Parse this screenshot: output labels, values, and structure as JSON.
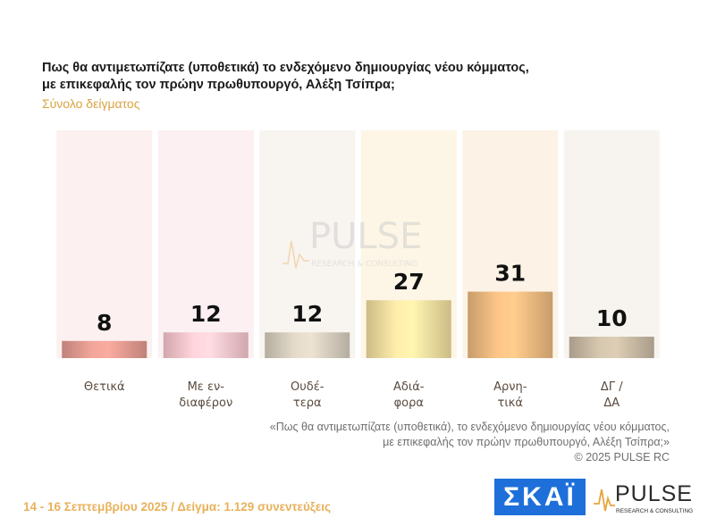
{
  "header": {
    "title": "Πως θα αντιμετωπίζατε (υποθετικά) το ενδεχόμενο δημιουργίας νέου κόμματος, με επικεφαλής τον πρώην πρωθυπουργό, Αλέξη Τσίπρα;",
    "subtitle": "Σύνολο δείγματος"
  },
  "chart_data": {
    "type": "bar",
    "categories": [
      [
        "Θετικά"
      ],
      [
        "Με εν-",
        "διαφέρον"
      ],
      [
        "Ουδέ-",
        "τερα"
      ],
      [
        "Αδιά-",
        "φορα"
      ],
      [
        "Αρνη-",
        "τικά"
      ],
      [
        "ΔΓ /",
        "ΔΑ"
      ]
    ],
    "values": [
      8,
      12,
      12,
      27,
      31,
      10
    ],
    "ylim": [
      0,
      100
    ],
    "bar_colors": [
      "#e0998f",
      "#f6c4cc",
      "#d4cbbc",
      "#f0dc9e",
      "#eab77e",
      "#c6b8a2"
    ],
    "background_colors": [
      "#fdf0f0",
      "#fcf0f3",
      "#f8f4f0",
      "#fdf6e6",
      "#fcf2e6",
      "#f7f4f0"
    ]
  },
  "watermark": {
    "brand": "PULSE",
    "tagline": "RESEARCH & CONSULTING"
  },
  "note": {
    "line1": "«Πως θα αντιμετωπίζατε (υποθετικά), το ενδεχόμενο δημιουργίας νέου κόμματος,",
    "line2": "με επικεφαλής τον πρώην πρωθυπουργό, Αλέξη Τσίπρα;»",
    "copyright": "©  2025  PULSE RC"
  },
  "footer": {
    "text": "14 - 16 Σεπτεμβρίου 2025  /  Δείγμα:  1.129 συνεντεύξεις"
  },
  "logos": {
    "skai": "ΣΚΑΪ",
    "pulse": "PULSE",
    "pulse_tagline": "RESEARCH & CONSULTING",
    "accent": "#1e6fd9"
  }
}
